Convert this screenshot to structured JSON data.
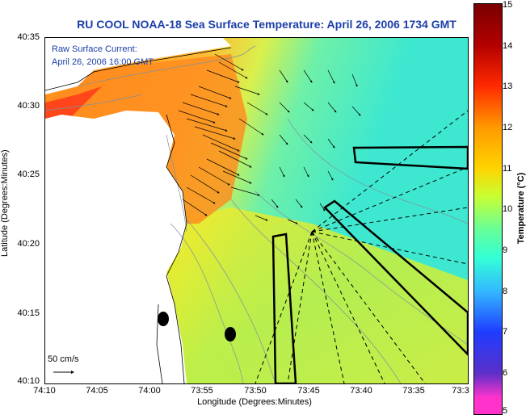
{
  "title": "RU COOL  NOAA-18  Sea Surface Temperature:  April 26, 2006 1734 GMT",
  "legend": {
    "line1": "Raw Surface Current:",
    "line2": "April 26, 2006 16:00 GMT",
    "scale": "50 cm/s"
  },
  "axes": {
    "xlabel": "Longitude (Degrees:Minutes)",
    "ylabel": "Latitude (Degrees:Minutes)",
    "xticks": [
      "74:10",
      "74:05",
      "74:00",
      "73:55",
      "73:50",
      "73:45",
      "73:40",
      "73:35",
      "73:3"
    ],
    "yticks": [
      "40:35",
      "40:30",
      "40:25",
      "40:20",
      "40:15",
      "40:10"
    ]
  },
  "colorbar": {
    "label": "Temperature (°C)",
    "ticks": [
      "15",
      "14",
      "13",
      "12",
      "11",
      "10",
      "9",
      "8",
      "7",
      "6",
      "5"
    ],
    "range": [
      5,
      15
    ]
  },
  "colors": {
    "title": "#1b3fa8",
    "land": "#ffffff",
    "warm": "#ff7a1a",
    "cold": "#35f0d0"
  },
  "map_features": {
    "markers": [
      "buoy-marker",
      "buoy-marker"
    ],
    "outline_boxes": 3,
    "dashed_tracks": 9
  }
}
